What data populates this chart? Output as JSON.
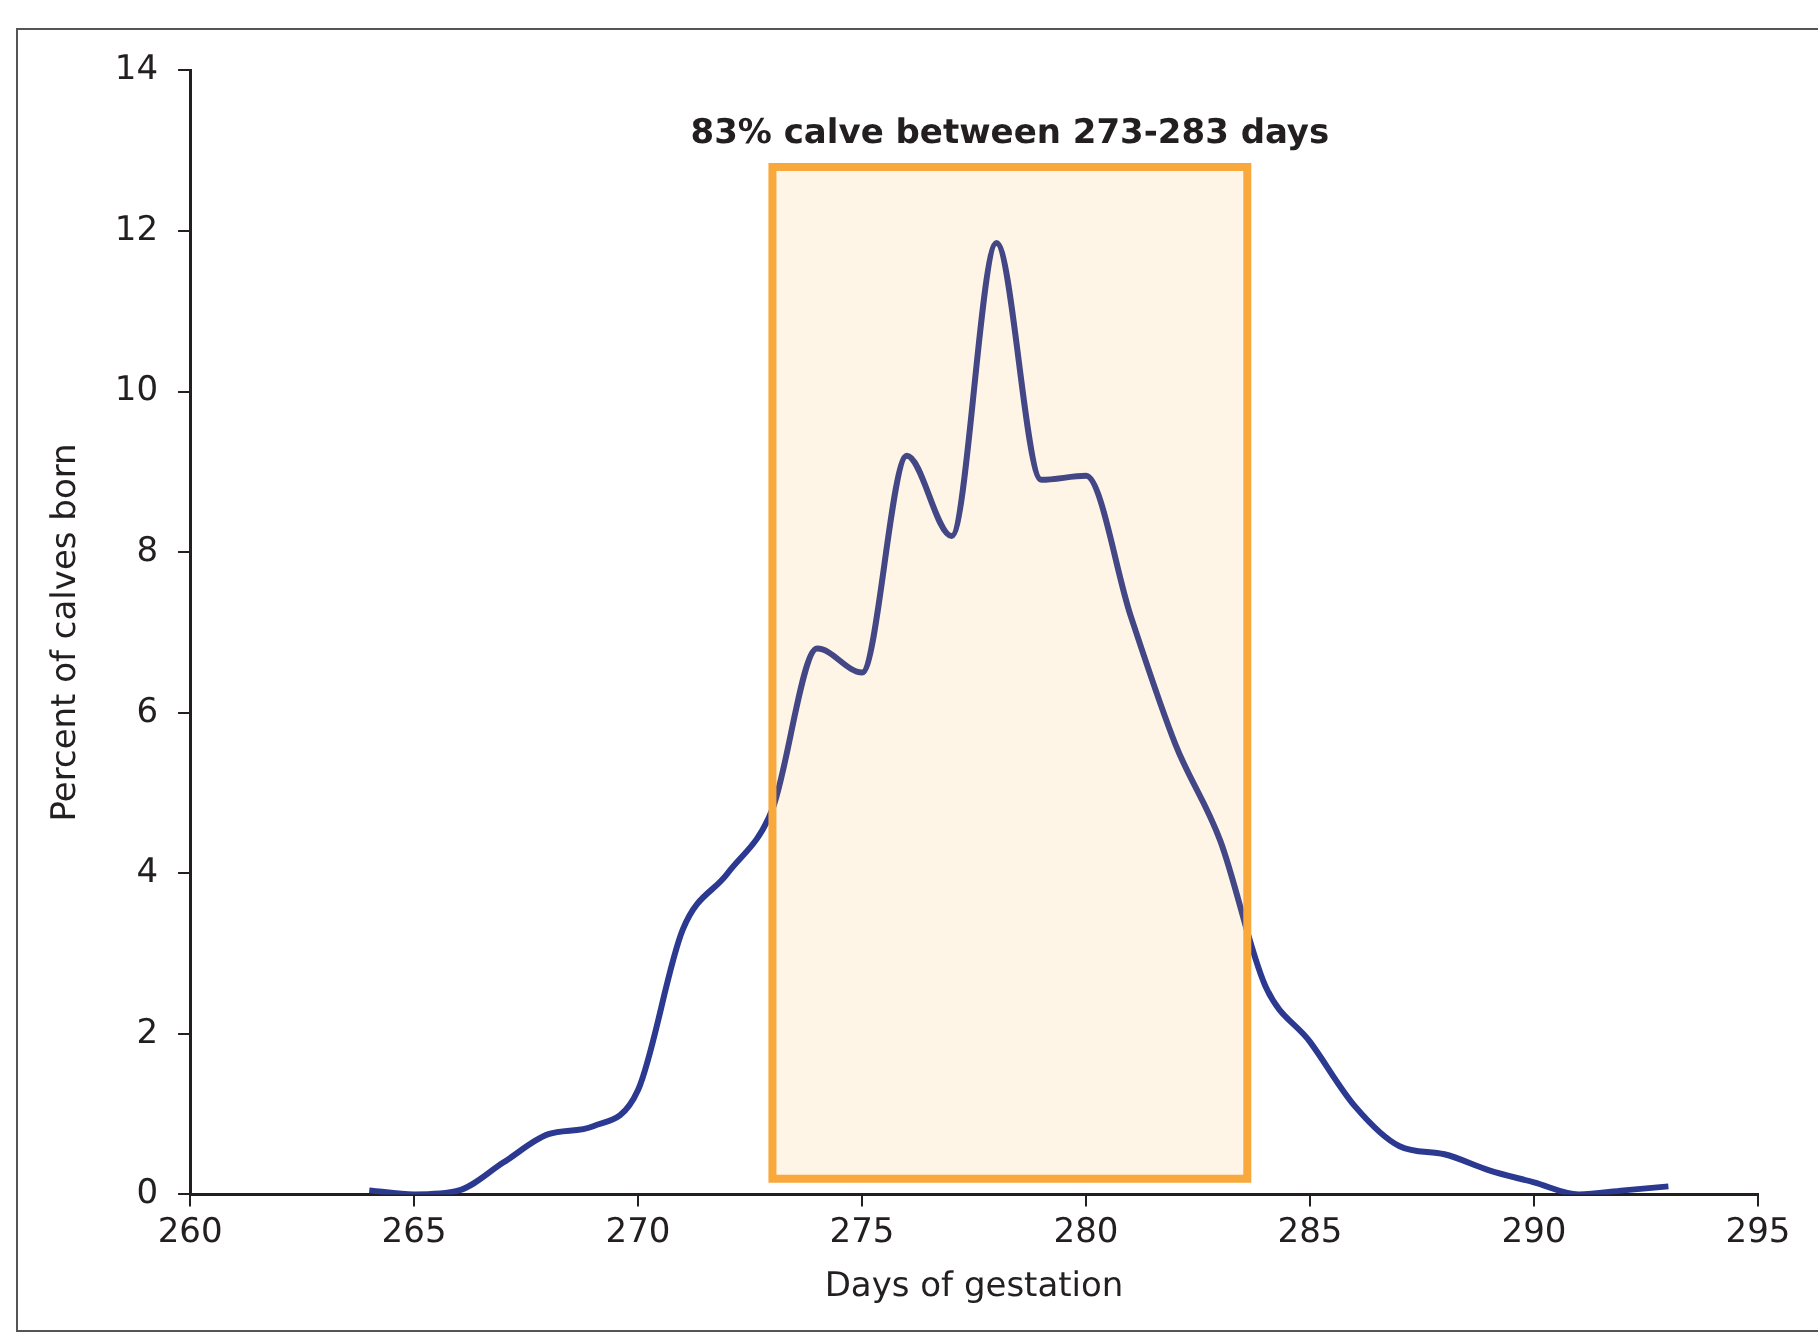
{
  "chart_data": {
    "type": "line",
    "xlabel": "Days of gestation",
    "ylabel": "Percent of calves born",
    "x": [
      264,
      265,
      266,
      267,
      268,
      269,
      270,
      271,
      272,
      273,
      274,
      275,
      276,
      277,
      278,
      279,
      280,
      281,
      282,
      283,
      284,
      285,
      286,
      287,
      288,
      289,
      290,
      291,
      292,
      293
    ],
    "series": [
      {
        "color": "#2b3990",
        "values": [
          0.05,
          0,
          0.05,
          0.4,
          0.75,
          0.85,
          1.3,
          3.3,
          4.0,
          4.8,
          6.8,
          6.5,
          9.2,
          8.2,
          11.85,
          8.9,
          8.95,
          7.2,
          5.6,
          4.4,
          2.6,
          1.9,
          1.1,
          0.6,
          0.5,
          0.3,
          0.15,
          0,
          0.05,
          0.1
        ]
      }
    ],
    "xlim": [
      260,
      295
    ],
    "xticks": [
      260,
      265,
      270,
      275,
      280,
      285,
      290,
      295
    ],
    "ylim": [
      0,
      14
    ],
    "yticks": [
      0,
      2,
      4,
      6,
      8,
      10,
      12,
      14
    ],
    "bands": [
      {
        "axis": "x",
        "from": 273,
        "to": 283.6,
        "label": "83% calve between 273-283 days",
        "color": "#f9a93b"
      }
    ],
    "grid": false,
    "legend": false,
    "marker": "none",
    "line_style": "solid"
  }
}
